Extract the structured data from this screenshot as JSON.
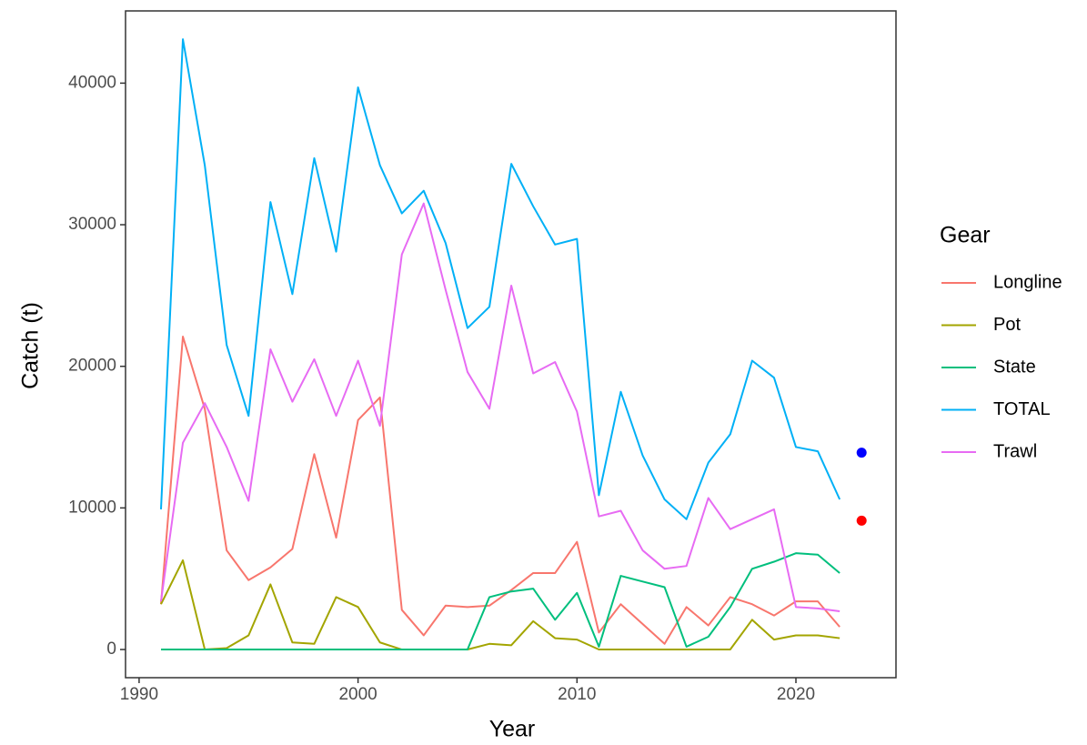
{
  "chart_data": {
    "type": "line",
    "x_label": "Year",
    "y_label": "Catch (t)",
    "legend_title": "Gear",
    "x": [
      1991,
      1992,
      1993,
      1994,
      1995,
      1996,
      1997,
      1998,
      1999,
      2000,
      2001,
      2002,
      2003,
      2004,
      2005,
      2006,
      2007,
      2008,
      2009,
      2010,
      2011,
      2012,
      2013,
      2014,
      2015,
      2016,
      2017,
      2018,
      2019,
      2020,
      2021,
      2022
    ],
    "series": [
      {
        "name": "Longline",
        "color": "#F8766D",
        "values": [
          3200,
          22100,
          17000,
          7000,
          4900,
          5800,
          7100,
          13800,
          7900,
          16200,
          17800,
          2800,
          1000,
          3100,
          3000,
          3100,
          4200,
          5400,
          5400,
          7600,
          1200,
          3200,
          1800,
          400,
          3000,
          1700,
          3700,
          3200,
          2400,
          3400,
          3400,
          1600
        ]
      },
      {
        "name": "Pot",
        "color": "#A3A500",
        "values": [
          3200,
          6300,
          0,
          100,
          1000,
          4600,
          500,
          400,
          3700,
          3000,
          500,
          0,
          0,
          0,
          0,
          400,
          300,
          2000,
          800,
          700,
          0,
          0,
          0,
          0,
          0,
          0,
          0,
          2100,
          700,
          1000,
          1000,
          800
        ]
      },
      {
        "name": "State",
        "color": "#00BF7D",
        "values": [
          0,
          0,
          0,
          0,
          0,
          0,
          0,
          0,
          0,
          0,
          0,
          0,
          0,
          0,
          0,
          3700,
          4100,
          4300,
          2100,
          4000,
          200,
          5200,
          4800,
          4400,
          200,
          900,
          3000,
          5700,
          6200,
          6800,
          6700,
          5400
        ]
      },
      {
        "name": "TOTAL",
        "color": "#00B0F6",
        "values": [
          9900,
          43100,
          34200,
          21500,
          16500,
          31600,
          25100,
          34700,
          28100,
          39700,
          34200,
          30800,
          32400,
          28700,
          22700,
          24200,
          34300,
          31300,
          28600,
          29000,
          10900,
          18200,
          13700,
          10600,
          9200,
          13200,
          15200,
          20400,
          19200,
          14300,
          14000,
          10600
        ]
      },
      {
        "name": "Trawl",
        "color": "#E76BF3",
        "values": [
          3400,
          14600,
          17400,
          14300,
          10500,
          21200,
          17500,
          20500,
          16500,
          20400,
          15800,
          27900,
          31500,
          25400,
          19600,
          17000,
          25700,
          19500,
          20300,
          16800,
          9400,
          9800,
          7000,
          5700,
          5900,
          10700,
          8500,
          9200,
          9900,
          3000,
          2900,
          2700
        ]
      }
    ],
    "points": [
      {
        "x": 2023,
        "y": 13900,
        "color": "#0000FF"
      },
      {
        "x": 2023,
        "y": 9100,
        "color": "#FF0000"
      }
    ],
    "xlim": [
      1989.38,
      2024.57
    ],
    "ylim": [
      -1990,
      45100
    ],
    "xticks": [
      1990,
      2000,
      2010,
      2020
    ],
    "yticks": [
      0,
      10000,
      20000,
      30000,
      40000
    ],
    "grid": false
  }
}
